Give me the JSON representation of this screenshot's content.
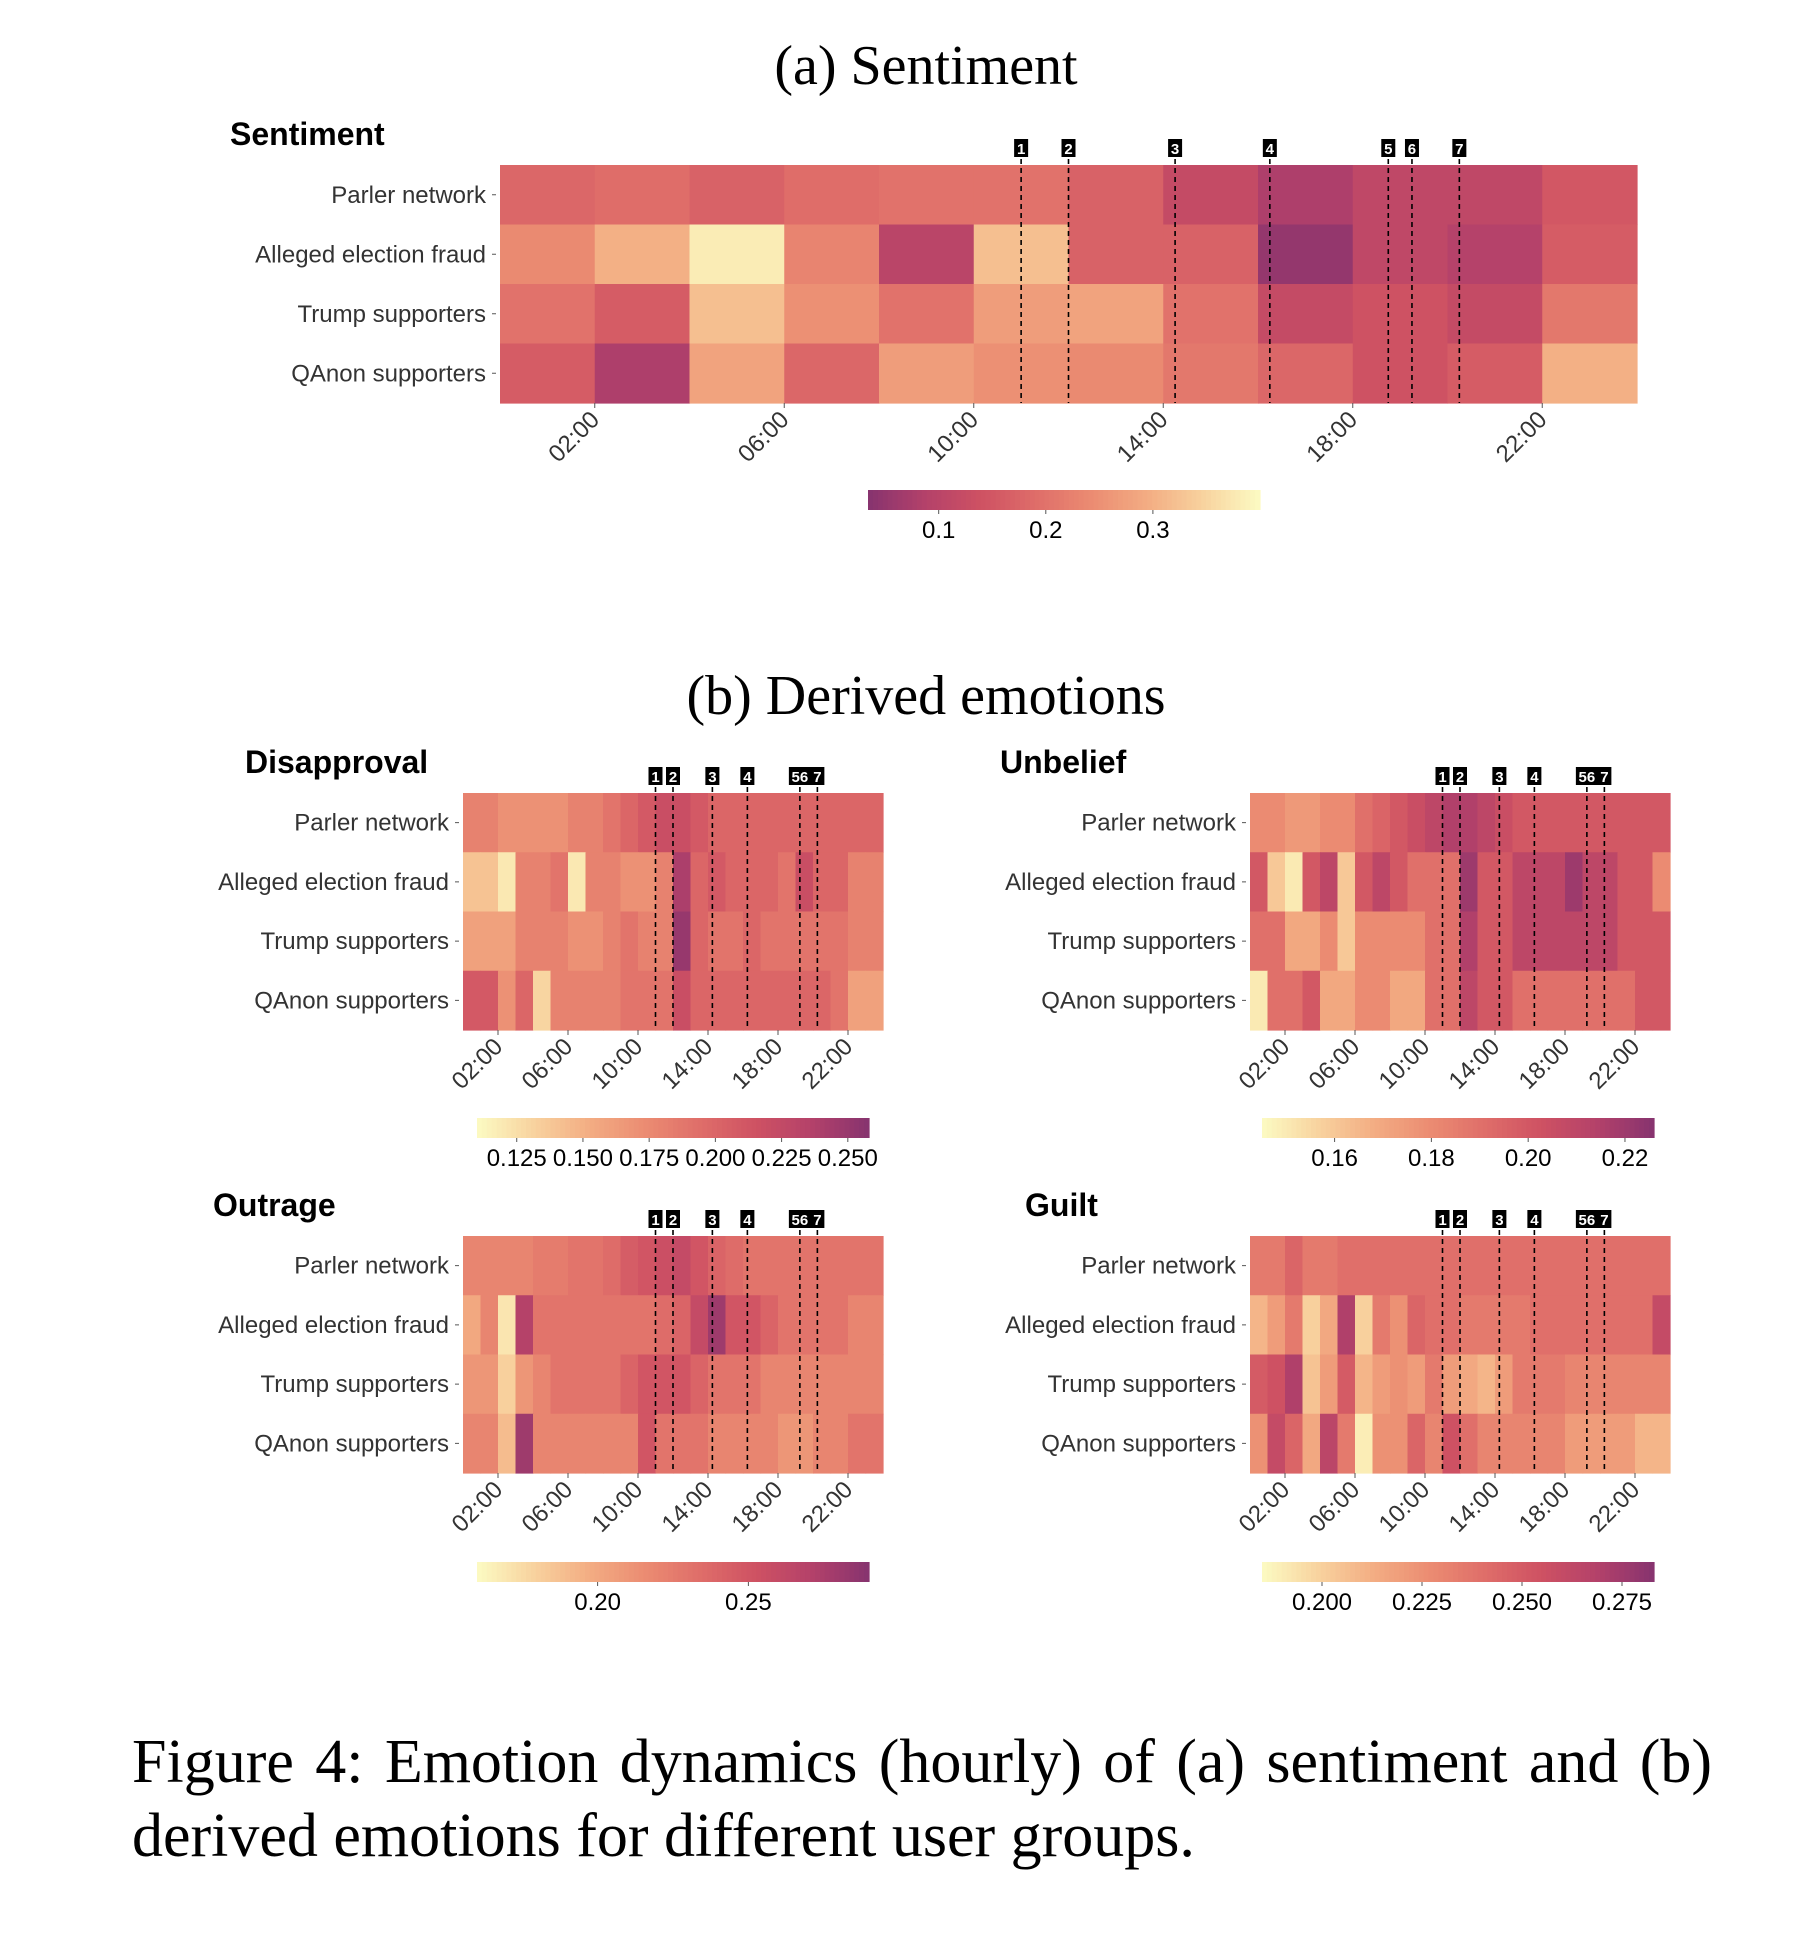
{
  "figure": {
    "section_a_title": "(a) Sentiment",
    "section_b_title": "(b) Derived emotions",
    "caption": "Figure 4: Emotion dynamics (hourly) of (a) sentiment and (b) derived emotions for different user groups."
  },
  "colors": {
    "palette_light_to_dark": [
      "#fcfbc3",
      "#f8d39f",
      "#f3ad83",
      "#eb8c72",
      "#df6d69",
      "#ce5163",
      "#b3416a",
      "#86336f"
    ],
    "event_marker_bg": "#000000",
    "event_line": "#000000"
  },
  "chart_data": [
    {
      "type": "heatmap",
      "title": "Sentiment",
      "rows": [
        "Parler network",
        "Alleged election fraud",
        "Trump supporters",
        "QAnon supporters"
      ],
      "x_ticks": [
        "02:00",
        "06:00",
        "10:00",
        "14:00",
        "18:00",
        "22:00"
      ],
      "event_labels": [
        "1",
        "2",
        "3",
        "4",
        "5",
        "6",
        "7"
      ],
      "event_hours": [
        11,
        12,
        14.25,
        16.25,
        18.75,
        19.25,
        20.25
      ],
      "hours": [
        0,
        2,
        4,
        6,
        8,
        10,
        12,
        14,
        16,
        18,
        20,
        22
      ],
      "values": [
        [
          0.18,
          0.19,
          0.17,
          0.19,
          0.2,
          0.2,
          0.17,
          0.12,
          0.08,
          0.11,
          0.11,
          0.15
        ],
        [
          0.24,
          0.3,
          0.38,
          0.23,
          0.1,
          0.32,
          0.17,
          0.17,
          0.05,
          0.11,
          0.09,
          0.16
        ],
        [
          0.2,
          0.16,
          0.32,
          0.25,
          0.2,
          0.27,
          0.28,
          0.2,
          0.12,
          0.14,
          0.12,
          0.21
        ],
        [
          0.16,
          0.08,
          0.28,
          0.18,
          0.27,
          0.25,
          0.24,
          0.21,
          0.18,
          0.14,
          0.16,
          0.3
        ]
      ],
      "colorbar": {
        "ticks": [
          "0.1",
          "0.2",
          "0.3"
        ],
        "tick_values": [
          0.1,
          0.2,
          0.3
        ],
        "min": 0.034,
        "max": 0.4,
        "reverse": false
      }
    },
    {
      "type": "heatmap",
      "title": "Disapproval",
      "rows": [
        "Parler network",
        "Alleged election fraud",
        "Trump supporters",
        "QAnon supporters"
      ],
      "x_ticks": [
        "02:00",
        "06:00",
        "10:00",
        "14:00",
        "18:00",
        "22:00"
      ],
      "event_labels": [
        "1",
        "2",
        "3",
        "4",
        "56",
        "7"
      ],
      "event_hours": [
        11,
        12,
        14.25,
        16.25,
        19.25,
        20.25
      ],
      "hours": [
        0,
        1,
        2,
        3,
        4,
        5,
        6,
        7,
        8,
        9,
        10,
        11,
        12,
        13,
        14,
        15,
        16,
        17,
        18,
        19,
        20,
        21,
        22,
        23
      ],
      "values": [
        [
          0.18,
          0.18,
          0.17,
          0.17,
          0.17,
          0.17,
          0.18,
          0.18,
          0.19,
          0.2,
          0.21,
          0.22,
          0.22,
          0.21,
          0.2,
          0.2,
          0.2,
          0.2,
          0.2,
          0.2,
          0.2,
          0.2,
          0.2,
          0.2
        ],
        [
          0.14,
          0.14,
          0.12,
          0.18,
          0.18,
          0.19,
          0.12,
          0.18,
          0.18,
          0.17,
          0.17,
          0.18,
          0.24,
          0.2,
          0.21,
          0.2,
          0.2,
          0.2,
          0.19,
          0.22,
          0.2,
          0.2,
          0.18,
          0.18
        ],
        [
          0.16,
          0.16,
          0.16,
          0.18,
          0.18,
          0.18,
          0.17,
          0.17,
          0.18,
          0.19,
          0.18,
          0.18,
          0.25,
          0.2,
          0.19,
          0.19,
          0.2,
          0.19,
          0.19,
          0.19,
          0.19,
          0.19,
          0.18,
          0.18
        ],
        [
          0.21,
          0.21,
          0.17,
          0.2,
          0.13,
          0.18,
          0.18,
          0.18,
          0.18,
          0.19,
          0.19,
          0.19,
          0.22,
          0.2,
          0.2,
          0.2,
          0.2,
          0.2,
          0.2,
          0.2,
          0.2,
          0.19,
          0.16,
          0.16
        ]
      ],
      "colorbar": {
        "ticks": [
          "0.125",
          "0.150",
          "0.175",
          "0.200",
          "0.225",
          "0.250"
        ],
        "tick_values": [
          0.125,
          0.15,
          0.175,
          0.2,
          0.225,
          0.25
        ],
        "min": 0.11,
        "max": 0.258,
        "reverse": true
      }
    },
    {
      "type": "heatmap",
      "title": "Unbelief",
      "rows": [
        "Parler network",
        "Alleged election fraud",
        "Trump supporters",
        "QAnon supporters"
      ],
      "x_ticks": [
        "02:00",
        "06:00",
        "10:00",
        "14:00",
        "18:00",
        "22:00"
      ],
      "event_labels": [
        "1",
        "2",
        "3",
        "4",
        "56",
        "7"
      ],
      "event_hours": [
        11,
        12,
        14.25,
        16.25,
        19.25,
        20.25
      ],
      "hours": [
        0,
        1,
        2,
        3,
        4,
        5,
        6,
        7,
        8,
        9,
        10,
        11,
        12,
        13,
        14,
        15,
        16,
        17,
        18,
        19,
        20,
        21,
        22,
        23
      ],
      "values": [
        [
          0.18,
          0.18,
          0.175,
          0.175,
          0.18,
          0.18,
          0.19,
          0.195,
          0.2,
          0.205,
          0.21,
          0.215,
          0.215,
          0.21,
          0.205,
          0.2,
          0.2,
          0.2,
          0.2,
          0.2,
          0.2,
          0.2,
          0.2,
          0.2
        ],
        [
          0.2,
          0.16,
          0.15,
          0.2,
          0.21,
          0.16,
          0.2,
          0.21,
          0.2,
          0.19,
          0.19,
          0.19,
          0.22,
          0.2,
          0.2,
          0.21,
          0.21,
          0.21,
          0.22,
          0.21,
          0.21,
          0.2,
          0.2,
          0.18
        ],
        [
          0.19,
          0.19,
          0.17,
          0.17,
          0.18,
          0.16,
          0.18,
          0.18,
          0.18,
          0.18,
          0.19,
          0.19,
          0.215,
          0.2,
          0.2,
          0.21,
          0.21,
          0.21,
          0.21,
          0.21,
          0.21,
          0.2,
          0.2,
          0.2
        ],
        [
          0.15,
          0.19,
          0.19,
          0.2,
          0.17,
          0.17,
          0.18,
          0.18,
          0.17,
          0.17,
          0.19,
          0.19,
          0.21,
          0.2,
          0.2,
          0.19,
          0.19,
          0.19,
          0.19,
          0.19,
          0.19,
          0.19,
          0.2,
          0.2
        ]
      ],
      "colorbar": {
        "ticks": [
          "0.16",
          "0.18",
          "0.20",
          "0.22"
        ],
        "tick_values": [
          0.16,
          0.18,
          0.2,
          0.22
        ],
        "min": 0.145,
        "max": 0.226,
        "reverse": true
      }
    },
    {
      "type": "heatmap",
      "title": "Outrage",
      "rows": [
        "Parler network",
        "Alleged election fraud",
        "Trump supporters",
        "QAnon supporters"
      ],
      "x_ticks": [
        "02:00",
        "06:00",
        "10:00",
        "14:00",
        "18:00",
        "22:00"
      ],
      "event_labels": [
        "1",
        "2",
        "3",
        "4",
        "56",
        "7"
      ],
      "event_hours": [
        11,
        12,
        14.25,
        16.25,
        19.25,
        20.25
      ],
      "hours": [
        0,
        1,
        2,
        3,
        4,
        5,
        6,
        7,
        8,
        9,
        10,
        11,
        12,
        13,
        14,
        15,
        16,
        17,
        18,
        19,
        20,
        21,
        22,
        23
      ],
      "values": [
        [
          0.22,
          0.22,
          0.22,
          0.22,
          0.225,
          0.225,
          0.23,
          0.23,
          0.235,
          0.245,
          0.25,
          0.255,
          0.26,
          0.25,
          0.24,
          0.235,
          0.23,
          0.23,
          0.23,
          0.23,
          0.23,
          0.23,
          0.23,
          0.23
        ],
        [
          0.2,
          0.22,
          0.17,
          0.27,
          0.23,
          0.23,
          0.23,
          0.23,
          0.23,
          0.23,
          0.23,
          0.235,
          0.24,
          0.26,
          0.28,
          0.25,
          0.25,
          0.24,
          0.23,
          0.23,
          0.23,
          0.23,
          0.22,
          0.22
        ],
        [
          0.21,
          0.21,
          0.18,
          0.21,
          0.22,
          0.23,
          0.23,
          0.23,
          0.23,
          0.24,
          0.25,
          0.25,
          0.25,
          0.24,
          0.23,
          0.23,
          0.23,
          0.22,
          0.22,
          0.22,
          0.22,
          0.22,
          0.22,
          0.22
        ],
        [
          0.22,
          0.22,
          0.19,
          0.28,
          0.22,
          0.22,
          0.22,
          0.22,
          0.22,
          0.22,
          0.25,
          0.23,
          0.23,
          0.23,
          0.22,
          0.22,
          0.22,
          0.22,
          0.21,
          0.21,
          0.22,
          0.22,
          0.23,
          0.23
        ]
      ],
      "colorbar": {
        "ticks": [
          "0.20",
          "0.25"
        ],
        "tick_values": [
          0.2,
          0.25
        ],
        "min": 0.16,
        "max": 0.29,
        "reverse": true
      }
    },
    {
      "type": "heatmap",
      "title": "Guilt",
      "rows": [
        "Parler network",
        "Alleged election fraud",
        "Trump supporters",
        "QAnon supporters"
      ],
      "x_ticks": [
        "02:00",
        "06:00",
        "10:00",
        "14:00",
        "18:00",
        "22:00"
      ],
      "event_labels": [
        "1",
        "2",
        "3",
        "4",
        "56",
        "7"
      ],
      "event_hours": [
        11,
        12,
        14.25,
        16.25,
        19.25,
        20.25
      ],
      "hours": [
        0,
        1,
        2,
        3,
        4,
        5,
        6,
        7,
        8,
        9,
        10,
        11,
        12,
        13,
        14,
        15,
        16,
        17,
        18,
        19,
        20,
        21,
        22,
        23
      ],
      "values": [
        [
          0.235,
          0.235,
          0.245,
          0.235,
          0.235,
          0.24,
          0.24,
          0.24,
          0.24,
          0.24,
          0.24,
          0.24,
          0.24,
          0.24,
          0.24,
          0.24,
          0.24,
          0.24,
          0.24,
          0.24,
          0.24,
          0.24,
          0.24,
          0.24
        ],
        [
          0.21,
          0.22,
          0.235,
          0.2,
          0.215,
          0.27,
          0.2,
          0.235,
          0.225,
          0.245,
          0.24,
          0.24,
          0.235,
          0.235,
          0.235,
          0.235,
          0.24,
          0.24,
          0.24,
          0.24,
          0.24,
          0.24,
          0.24,
          0.26
        ],
        [
          0.25,
          0.255,
          0.27,
          0.205,
          0.22,
          0.25,
          0.21,
          0.22,
          0.225,
          0.22,
          0.235,
          0.22,
          0.215,
          0.21,
          0.22,
          0.235,
          0.235,
          0.235,
          0.23,
          0.23,
          0.23,
          0.23,
          0.23,
          0.23
        ],
        [
          0.225,
          0.26,
          0.245,
          0.215,
          0.265,
          0.235,
          0.19,
          0.225,
          0.225,
          0.245,
          0.23,
          0.255,
          0.24,
          0.23,
          0.23,
          0.23,
          0.23,
          0.23,
          0.22,
          0.22,
          0.22,
          0.22,
          0.21,
          0.21
        ]
      ],
      "colorbar": {
        "ticks": [
          "0.200",
          "0.225",
          "0.250",
          "0.275"
        ],
        "tick_values": [
          0.2,
          0.225,
          0.25,
          0.275
        ],
        "min": 0.185,
        "max": 0.283,
        "reverse": true
      }
    }
  ]
}
